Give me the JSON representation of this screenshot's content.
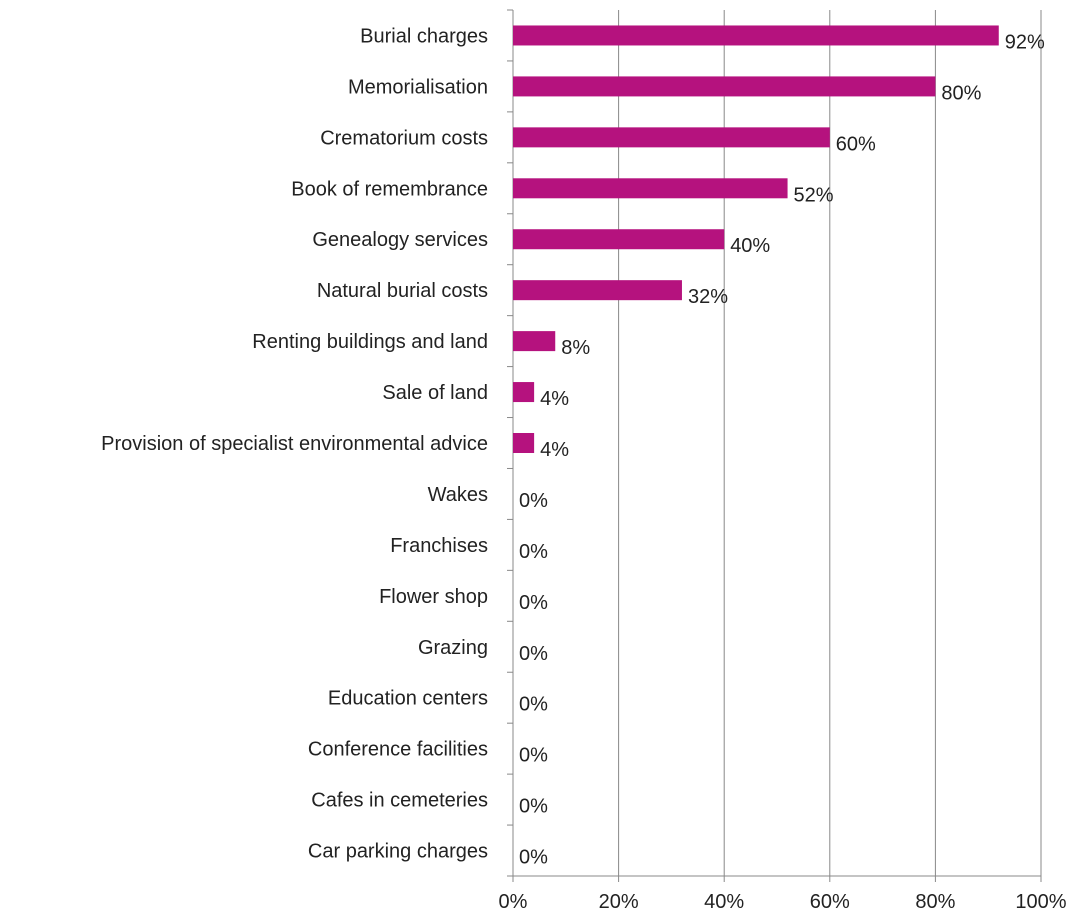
{
  "chart_data": {
    "type": "bar",
    "orientation": "horizontal",
    "categories": [
      "Burial charges",
      "Memorialisation",
      "Crematorium costs",
      "Book of remembrance",
      "Genealogy services",
      "Natural burial costs",
      "Renting buildings and land",
      "Sale of land",
      "Provision of specialist environmental advice",
      "Wakes",
      "Franchises",
      "Flower shop",
      "Grazing",
      "Education centers",
      "Conference facilities",
      "Cafes in cemeteries",
      "Car parking charges"
    ],
    "values": [
      92,
      80,
      60,
      52,
      40,
      32,
      8,
      4,
      4,
      0,
      0,
      0,
      0,
      0,
      0,
      0,
      0
    ],
    "value_labels": [
      "92%",
      "80%",
      "60%",
      "52%",
      "40%",
      "32%",
      "8%",
      "4%",
      "4%",
      "0%",
      "0%",
      "0%",
      "0%",
      "0%",
      "0%",
      "0%",
      "0%"
    ],
    "x_ticks": [
      "0%",
      "20%",
      "40%",
      "60%",
      "80%",
      "100%"
    ],
    "xlim": [
      0,
      100
    ],
    "grid": "vertical",
    "legend": "none",
    "bar_color": "#B5127E",
    "grid_color": "#888888",
    "axis_color": "#888888"
  }
}
